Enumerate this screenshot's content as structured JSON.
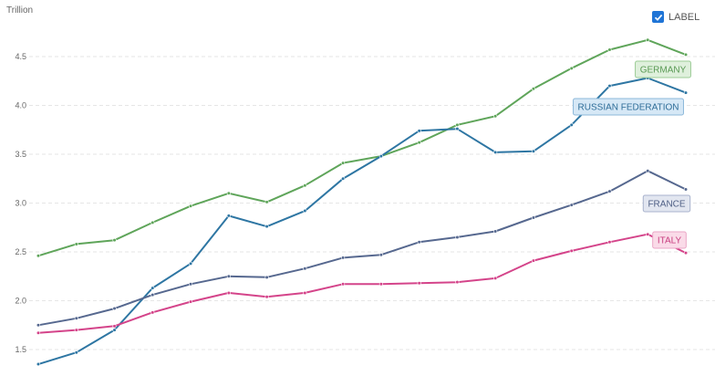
{
  "unit_label": "Trillion",
  "legend_toggle": {
    "label": "LABEL",
    "checked": true
  },
  "colors": {
    "GERMANY": "#5fa55a",
    "RUSSIAN FEDERATION": "#2e76a3",
    "FRANCE": "#56688f",
    "ITALY": "#d4448a"
  },
  "chart_data": {
    "type": "line",
    "title": "",
    "xlabel": "",
    "ylabel": "Trillion",
    "ylim": [
      1.4,
      4.9
    ],
    "yticks": [
      "1.5",
      "2.0",
      "2.5",
      "3.0",
      "3.5",
      "4.0",
      "4.5"
    ],
    "grid": true,
    "x": [
      1,
      2,
      3,
      4,
      5,
      6,
      7,
      8,
      9,
      10,
      11,
      12,
      13,
      14,
      15,
      16,
      17,
      18
    ],
    "series": [
      {
        "name": "GERMANY",
        "values": [
          2.46,
          2.58,
          2.62,
          2.8,
          2.97,
          3.1,
          3.01,
          3.18,
          3.41,
          3.48,
          3.62,
          3.8,
          3.89,
          4.17,
          4.38,
          4.57,
          4.67,
          4.52
        ]
      },
      {
        "name": "RUSSIAN FEDERATION",
        "values": [
          1.35,
          1.47,
          1.7,
          2.13,
          2.38,
          2.87,
          2.76,
          2.92,
          3.25,
          3.48,
          3.74,
          3.76,
          3.52,
          3.53,
          3.8,
          4.2,
          4.28,
          4.13
        ]
      },
      {
        "name": "FRANCE",
        "values": [
          1.75,
          1.82,
          1.92,
          2.06,
          2.17,
          2.25,
          2.24,
          2.33,
          2.44,
          2.47,
          2.6,
          2.65,
          2.71,
          2.85,
          2.98,
          3.12,
          3.33,
          3.14
        ]
      },
      {
        "name": "ITALY",
        "values": [
          1.67,
          1.7,
          1.74,
          1.88,
          1.99,
          2.08,
          2.04,
          2.08,
          2.17,
          2.17,
          2.18,
          2.19,
          2.23,
          2.41,
          2.51,
          2.6,
          2.68,
          2.49
        ]
      }
    ]
  }
}
